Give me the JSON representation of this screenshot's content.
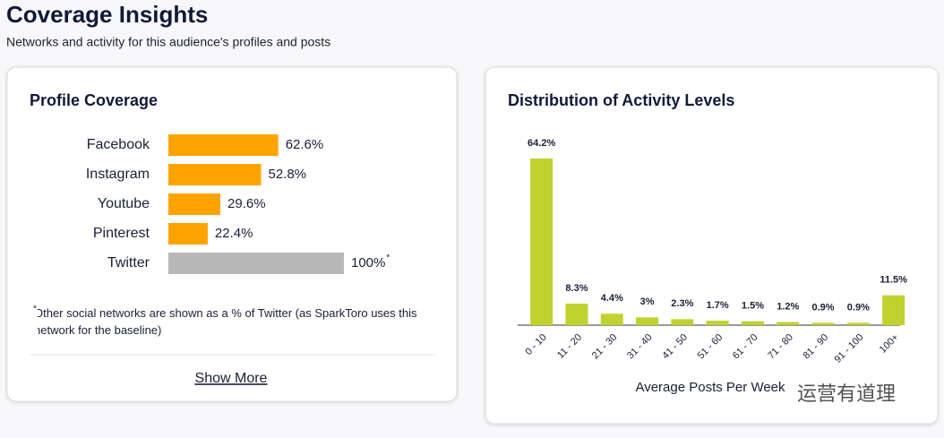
{
  "header": {
    "title": "Coverage Insights",
    "subtitle": "Networks and activity for this audience's profiles and posts"
  },
  "chart_data": [
    {
      "type": "barh",
      "title": "Profile Coverage",
      "categories": [
        "Facebook",
        "Instagram",
        "Youtube",
        "Pinterest",
        "Twitter"
      ],
      "values": [
        62.6,
        52.8,
        29.6,
        22.4,
        100
      ],
      "value_labels": [
        "62.6%",
        "52.8%",
        "29.6%",
        "22.4%",
        "100%"
      ],
      "colors": [
        "#ffa300",
        "#ffa300",
        "#ffa300",
        "#ffa300",
        "#b8b8b8"
      ],
      "footnote_marker": "*",
      "footnote": "Other social networks are shown as a % of Twitter (as SparkToro uses this network for the baseline)"
    },
    {
      "type": "bar",
      "title": "Distribution of Activity Levels",
      "categories": [
        "0 - 10",
        "11 - 20",
        "21 - 30",
        "31 - 40",
        "41 - 50",
        "51 - 60",
        "61 - 70",
        "71 - 80",
        "81 - 90",
        "91 - 100",
        "100+"
      ],
      "values": [
        64.2,
        8.3,
        4.4,
        3,
        2.3,
        1.7,
        1.5,
        1.2,
        0.9,
        0.9,
        11.5
      ],
      "value_labels": [
        "64.2%",
        "8.3%",
        "4.4%",
        "3%",
        "2.3%",
        "1.7%",
        "1.5%",
        "1.2%",
        "0.9%",
        "0.9%",
        "11.5%"
      ],
      "color": "#c0d22e",
      "x_label": "Average Posts Per Week"
    }
  ],
  "show_more": "Show More",
  "watermark": "运营有道理"
}
